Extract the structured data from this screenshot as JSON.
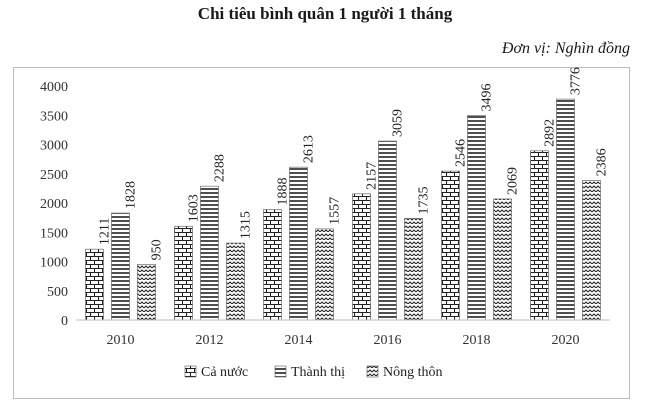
{
  "chart_data": {
    "type": "bar",
    "title": "Chi tiêu bình quân 1 người 1 tháng",
    "unit_note": "Đơn vị: Nghìn đồng",
    "categories": [
      "2010",
      "2012",
      "2014",
      "2016",
      "2018",
      "2020"
    ],
    "series": [
      {
        "name": "Cả nước",
        "values": [
          1211,
          1603,
          1888,
          2157,
          2546,
          2892
        ],
        "pattern": "brick"
      },
      {
        "name": "Thành thị",
        "values": [
          1828,
          2288,
          2613,
          3059,
          3496,
          3776
        ],
        "pattern": "horizontal-lines"
      },
      {
        "name": "Nông thôn",
        "values": [
          950,
          1315,
          1557,
          1735,
          2069,
          2386
        ],
        "pattern": "zigzag"
      }
    ],
    "ylim": [
      0,
      4000
    ],
    "yticks": [
      0,
      500,
      1000,
      1500,
      2000,
      2500,
      3000,
      3500,
      4000
    ],
    "grid": false,
    "legend_position": "bottom",
    "data_labels": true
  }
}
